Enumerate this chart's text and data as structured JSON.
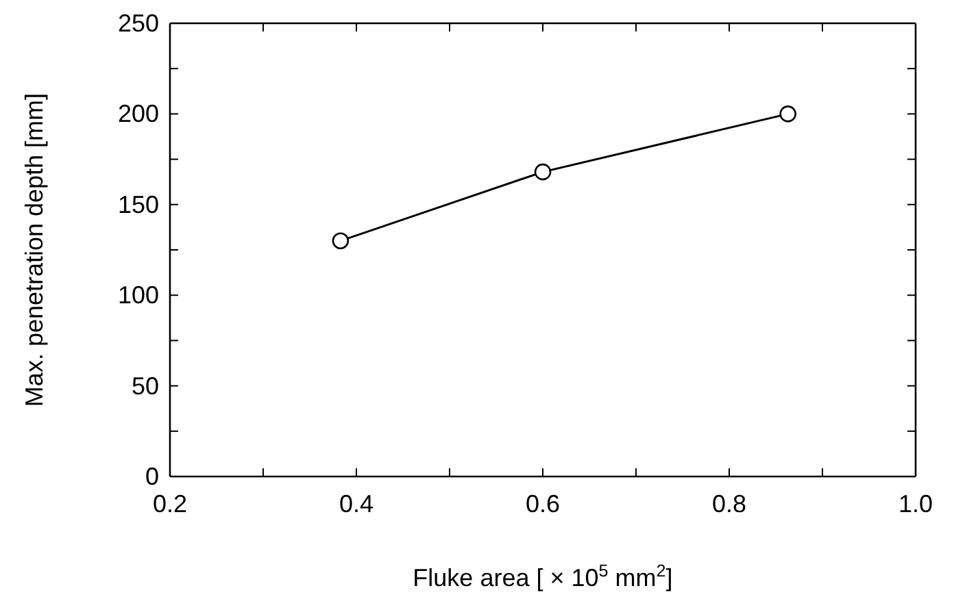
{
  "chart_data": {
    "type": "line",
    "xlabel": "Fluke area [ × 10$^{5}$ mm$^{2}$]",
    "ylabel": "Max. penetration depth [mm]",
    "x": [
      0.383,
      0.6,
      0.863
    ],
    "values": [
      130,
      168,
      200
    ],
    "color": "#000000",
    "marker": "circle",
    "line_style": "solid",
    "xlim": [
      0.2,
      1.0
    ],
    "xticks": [
      0.2,
      {
        "value": 0.3,
        "label": null
      },
      0.4,
      {
        "value": 0.5,
        "label": null
      },
      0.6,
      {
        "value": 0.7,
        "label": null
      },
      0.8,
      {
        "value": 0.9,
        "label": null
      },
      {
        "value": 1,
        "label": "1.0"
      }
    ],
    "ylim": [
      0,
      250
    ],
    "yticks": [
      0,
      {
        "value": 25,
        "label": null
      },
      50,
      {
        "value": 75,
        "label": null
      },
      100,
      {
        "value": 125,
        "label": null
      },
      150,
      {
        "value": 175,
        "label": null
      },
      200,
      {
        "value": 225,
        "label": null
      },
      250
    ]
  }
}
